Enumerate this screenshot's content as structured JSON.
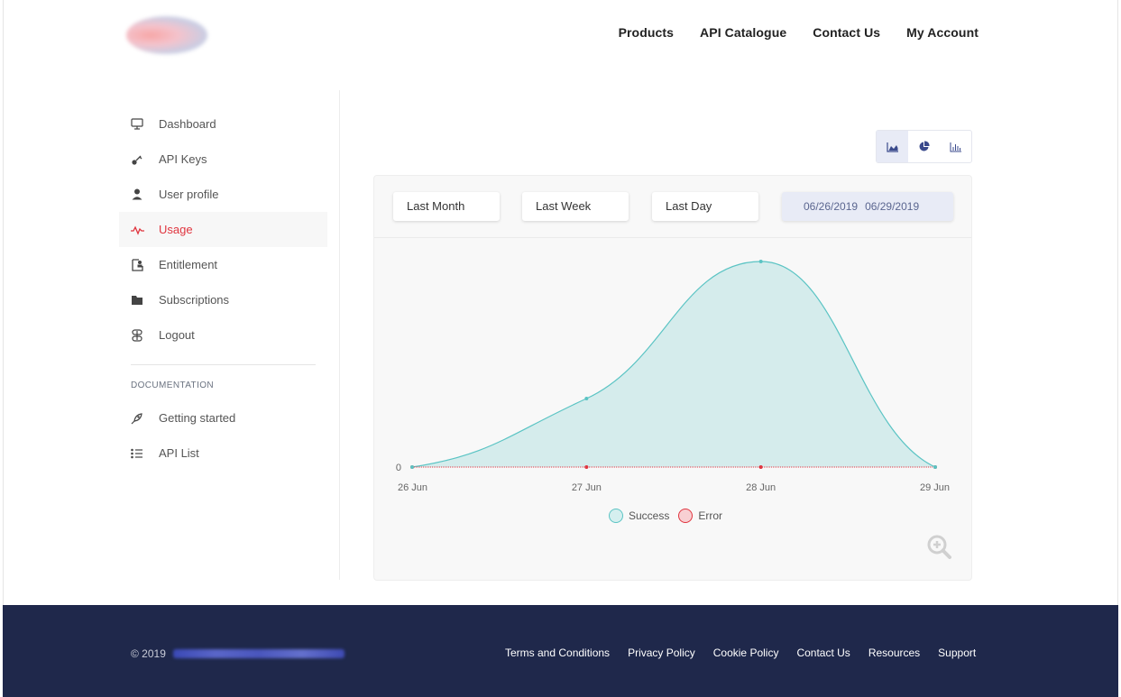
{
  "header": {
    "nav": [
      "Products",
      "API Catalogue",
      "Contact Us",
      "My Account"
    ]
  },
  "sidebar": {
    "items": [
      {
        "label": "Dashboard",
        "icon": "monitor-icon"
      },
      {
        "label": "API Keys",
        "icon": "key-icon"
      },
      {
        "label": "User profile",
        "icon": "user-icon"
      },
      {
        "label": "Usage",
        "icon": "pulse-icon",
        "active": true
      },
      {
        "label": "Entitlement",
        "icon": "id-card-icon"
      },
      {
        "label": "Subscriptions",
        "icon": "folder-icon"
      },
      {
        "label": "Logout",
        "icon": "logout-icon"
      }
    ],
    "doc_heading": "DOCUMENTATION",
    "doc_items": [
      {
        "label": "Getting started",
        "icon": "rocket-icon"
      },
      {
        "label": "API List",
        "icon": "list-icon"
      }
    ]
  },
  "chart_toggles": {
    "active": "area-chart",
    "options": [
      "area-chart-icon",
      "pie-chart-icon",
      "bar-chart-icon"
    ]
  },
  "filters": {
    "last_month": "Last Month",
    "last_week": "Last Week",
    "last_day": "Last Day",
    "date_from": "06/26/2019",
    "date_to": "06/29/2019"
  },
  "chart_data": {
    "type": "area",
    "categories": [
      "26 Jun",
      "27 Jun",
      "28 Jun",
      "29 Jun"
    ],
    "y_ticks": [
      "0"
    ],
    "series": [
      {
        "name": "Success",
        "values": [
          0,
          2,
          6,
          0
        ],
        "color": "#5bc4c4"
      },
      {
        "name": "Error",
        "values": [
          0,
          0,
          0,
          0
        ],
        "color": "#e0353f"
      }
    ],
    "legend_position": "bottom"
  },
  "footer": {
    "copyright": "© 2019",
    "links": [
      "Terms and Conditions",
      "Privacy Policy",
      "Cookie Policy",
      "Contact Us",
      "Resources",
      "Support"
    ]
  },
  "colors": {
    "accent": "#e0353f",
    "footer_bg": "#1f284b",
    "success": "#5bc4c4",
    "date_range_bg": "#e8ebf6"
  }
}
